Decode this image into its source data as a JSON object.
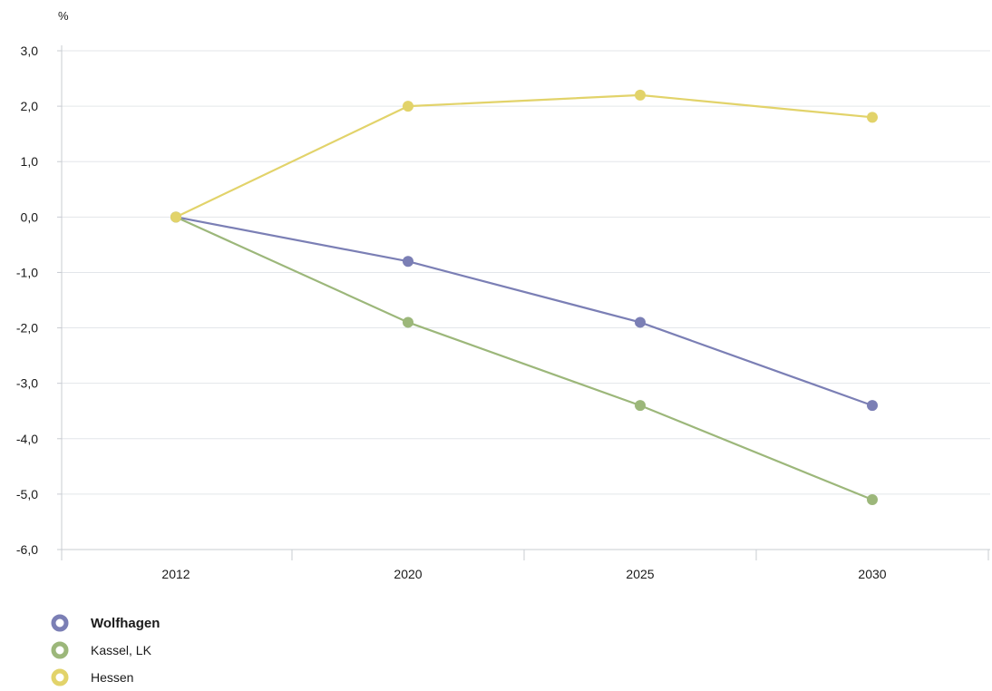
{
  "chart_data": {
    "type": "line",
    "unit_label": "%",
    "categories": [
      "2012",
      "2020",
      "2025",
      "2030"
    ],
    "y_ticks": [
      "3,0",
      "2,0",
      "1,0",
      "0,0",
      "-1,0",
      "-2,0",
      "-3,0",
      "-4,0",
      "-5,0",
      "-6,0"
    ],
    "ylim": [
      -6,
      3
    ],
    "grid": true,
    "legend_position": "bottom-left",
    "series": [
      {
        "name": "Wolfhagen",
        "color": "#7b7fb5",
        "bold": true,
        "values": [
          0.0,
          -0.8,
          -1.9,
          -3.4
        ]
      },
      {
        "name": "Kassel, LK",
        "color": "#9cb77a",
        "bold": false,
        "values": [
          0.0,
          -1.9,
          -3.4,
          -5.1
        ]
      },
      {
        "name": "Hessen",
        "color": "#e2d36a",
        "bold": false,
        "values": [
          0.0,
          2.0,
          2.2,
          1.8
        ]
      }
    ]
  }
}
